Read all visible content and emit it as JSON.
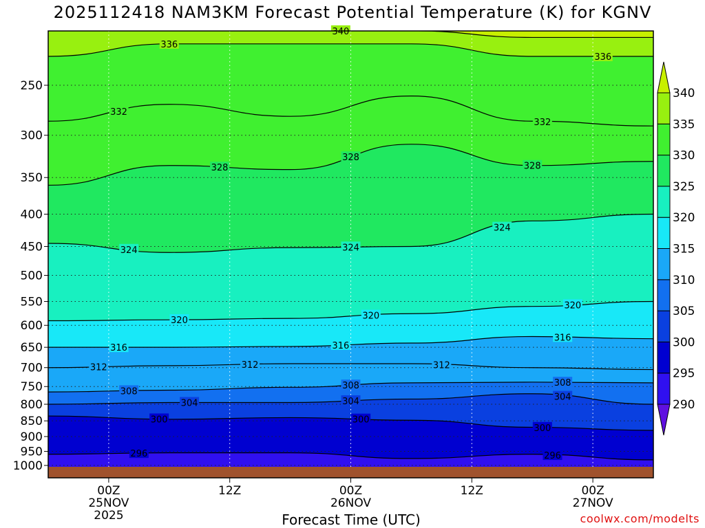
{
  "chart_data": {
    "type": "heatmap",
    "title": "2025112418 NAM3KM Forecast Potential Temperature (K) for KGNV",
    "xlabel": "Forecast Time (UTC)",
    "ylabel": "",
    "y_scale": "log-pressure",
    "y_ticks": [
      250,
      300,
      350,
      400,
      450,
      500,
      550,
      600,
      650,
      700,
      750,
      800,
      850,
      900,
      950,
      1000
    ],
    "ylim": [
      1000,
      200
    ],
    "x_ticks": [
      {
        "time": "2025-11-25T00Z",
        "lines": [
          "00Z",
          "25NOV",
          "2025"
        ]
      },
      {
        "time": "2025-11-25T12Z",
        "lines": [
          "12Z"
        ]
      },
      {
        "time": "2025-11-26T00Z",
        "lines": [
          "00Z",
          "26NOV"
        ]
      },
      {
        "time": "2025-11-26T12Z",
        "lines": [
          "12Z"
        ]
      },
      {
        "time": "2025-11-27T00Z",
        "lines": [
          "00Z",
          "27NOV"
        ]
      }
    ],
    "xlim": [
      "2025-11-24T18Z",
      "2025-11-27T06Z"
    ],
    "grid": true,
    "colorbar": {
      "levels": [
        290,
        295,
        300,
        305,
        310,
        315,
        320,
        325,
        330,
        335,
        340
      ],
      "colors": [
        "#6010e0",
        "#3010f0",
        "#0000d0",
        "#0a40e0",
        "#1270f0",
        "#1aa8f8",
        "#18e8f8",
        "#18f0c0",
        "#20e860",
        "#40f030",
        "#98f010",
        "#c8f000"
      ],
      "extend": "both"
    },
    "contour_levels": [
      296,
      300,
      304,
      308,
      312,
      316,
      320,
      324,
      328,
      332,
      336,
      340
    ],
    "isentrope_pressures": {
      "times": [
        "2025-11-24T18Z",
        "2025-11-25T06Z",
        "2025-11-25T18Z",
        "2025-11-26T06Z",
        "2025-11-26T18Z",
        "2025-11-27T06Z"
      ],
      "series": [
        {
          "theta": 296,
          "pressure_hPa": [
            960,
            955,
            955,
            975,
            960,
            980
          ]
        },
        {
          "theta": 300,
          "pressure_hPa": [
            835,
            845,
            840,
            848,
            870,
            880
          ]
        },
        {
          "theta": 304,
          "pressure_hPa": [
            800,
            795,
            795,
            785,
            770,
            800
          ]
        },
        {
          "theta": 308,
          "pressure_hPa": [
            765,
            760,
            752,
            740,
            738,
            740
          ]
        },
        {
          "theta": 312,
          "pressure_hPa": [
            700,
            695,
            690,
            690,
            700,
            705
          ]
        },
        {
          "theta": 316,
          "pressure_hPa": [
            650,
            650,
            648,
            640,
            625,
            630
          ]
        },
        {
          "theta": 320,
          "pressure_hPa": [
            590,
            588,
            585,
            575,
            560,
            550
          ]
        },
        {
          "theta": 324,
          "pressure_hPa": [
            445,
            460,
            452,
            450,
            410,
            400
          ]
        },
        {
          "theta": 328,
          "pressure_hPa": [
            360,
            335,
            340,
            310,
            335,
            330
          ]
        },
        {
          "theta": 332,
          "pressure_hPa": [
            285,
            268,
            280,
            260,
            285,
            290
          ]
        },
        {
          "theta": 336,
          "pressure_hPa": [
            225,
            215,
            215,
            215,
            225,
            225
          ]
        },
        {
          "theta": 340,
          "pressure_hPa": [
            205,
            205,
            205,
            205,
            210,
            210
          ]
        }
      ]
    },
    "contour_labels": [
      {
        "theta": 336,
        "time": "2025-11-25T06Z"
      },
      {
        "theta": 340,
        "time": "2025-11-25T23Z"
      },
      {
        "theta": 336,
        "time": "2025-11-27T01Z"
      },
      {
        "theta": 332,
        "time": "2025-11-25T01Z"
      },
      {
        "theta": 332,
        "time": "2025-11-26T19Z"
      },
      {
        "theta": 328,
        "time": "2025-11-25T11Z"
      },
      {
        "theta": 328,
        "time": "2025-11-26T00Z"
      },
      {
        "theta": 328,
        "time": "2025-11-26T18Z"
      },
      {
        "theta": 324,
        "time": "2025-11-26T15Z"
      },
      {
        "theta": 324,
        "time": "2025-11-25T02Z"
      },
      {
        "theta": 324,
        "time": "2025-11-26T00Z"
      },
      {
        "theta": 320,
        "time": "2025-11-25T07Z"
      },
      {
        "theta": 320,
        "time": "2025-11-26T02Z"
      },
      {
        "theta": 320,
        "time": "2025-11-26T22Z"
      },
      {
        "theta": 316,
        "time": "2025-11-25T01Z"
      },
      {
        "theta": 316,
        "time": "2025-11-25T23Z"
      },
      {
        "theta": 316,
        "time": "2025-11-26T21Z"
      },
      {
        "theta": 312,
        "time": "2025-11-24T23Z"
      },
      {
        "theta": 312,
        "time": "2025-11-25T14Z"
      },
      {
        "theta": 312,
        "time": "2025-11-26T09Z"
      },
      {
        "theta": 308,
        "time": "2025-11-25T02Z"
      },
      {
        "theta": 308,
        "time": "2025-11-26T00Z"
      },
      {
        "theta": 308,
        "time": "2025-11-26T21Z"
      },
      {
        "theta": 304,
        "time": "2025-11-25T08Z"
      },
      {
        "theta": 304,
        "time": "2025-11-26T00Z"
      },
      {
        "theta": 304,
        "time": "2025-11-26T21Z"
      },
      {
        "theta": 300,
        "time": "2025-11-25T05Z"
      },
      {
        "theta": 300,
        "time": "2025-11-26T01Z"
      },
      {
        "theta": 300,
        "time": "2025-11-26T19Z"
      },
      {
        "theta": 296,
        "time": "2025-11-25T03Z"
      },
      {
        "theta": 296,
        "time": "2025-11-26T20Z"
      }
    ]
  },
  "title": "2025112418 NAM3KM Forecast Potential Temperature (K) for KGNV",
  "xlabel": "Forecast Time (UTC)",
  "credit": "coolwx.com/modelts",
  "ground_color": "#a0522d"
}
